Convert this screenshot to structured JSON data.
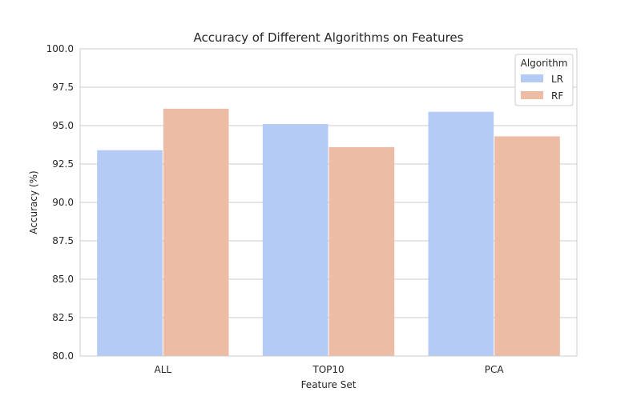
{
  "chart_data": {
    "type": "bar",
    "title": "Accuracy of Different Algorithms on Features",
    "xlabel": "Feature Set",
    "ylabel": "Accuracy (%)",
    "categories": [
      "ALL",
      "TOP10",
      "PCA"
    ],
    "series": [
      {
        "name": "LR",
        "values": [
          93.4,
          95.1,
          95.9
        ],
        "color": "#b3cbf5"
      },
      {
        "name": "RF",
        "values": [
          96.1,
          93.6,
          94.3
        ],
        "color": "#edbca5"
      }
    ],
    "ylim": [
      80,
      100
    ],
    "yticks": [
      "80.0",
      "82.5",
      "85.0",
      "87.5",
      "90.0",
      "92.5",
      "95.0",
      "97.5",
      "100.0"
    ],
    "grid": true,
    "legend": {
      "title": "Algorithm",
      "placement": "top-right"
    }
  }
}
